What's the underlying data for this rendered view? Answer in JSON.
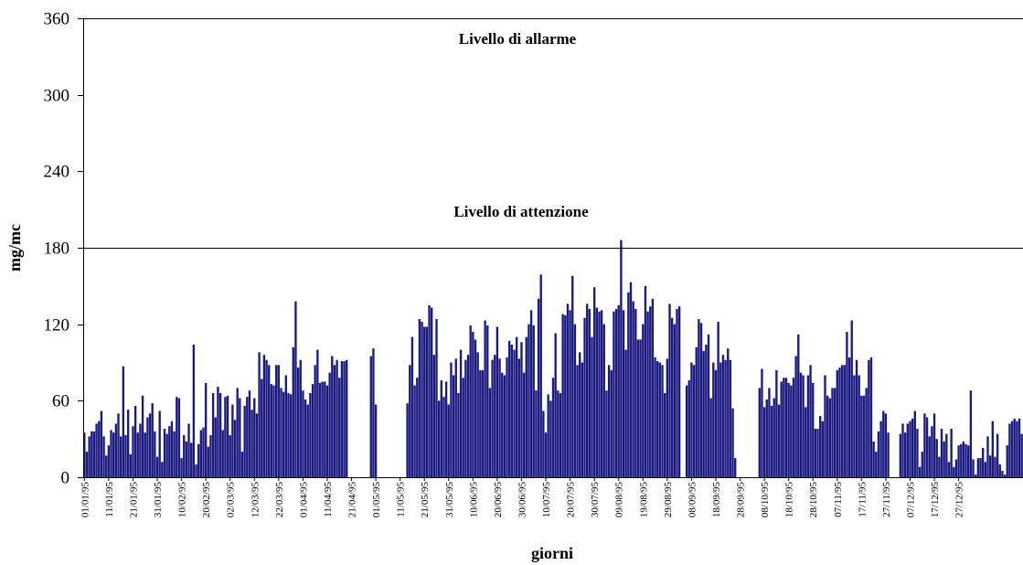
{
  "chart_data": {
    "type": "bar",
    "xlabel": "giorni",
    "ylabel": "mg/mc",
    "ylim": [
      0,
      360
    ],
    "yticks": [
      0,
      60,
      120,
      180,
      240,
      300,
      360
    ],
    "grid": false,
    "legend": "none",
    "bar_color": "#1a1a80",
    "reference_lines": [
      {
        "name": "Livello di attenzione",
        "value": 180
      },
      {
        "name": "Livello di allarme",
        "value": 360
      }
    ],
    "x_tick_labels": [
      "01/01/95",
      "11/01/95",
      "21/01/95",
      "31/01/95",
      "10/02/95",
      "20/02/95",
      "02/03/95",
      "12/03/95",
      "22/03/95",
      "01/04/95",
      "11/04/95",
      "21/04/95",
      "01/05/95",
      "11/05/95",
      "21/05/95",
      "31/05/95",
      "10/06/95",
      "20/06/95",
      "30/06/95",
      "10/07/95",
      "20/07/95",
      "30/07/95",
      "09/08/95",
      "19/08/95",
      "29/08/95",
      "08/09/95",
      "18/09/95",
      "28/09/95",
      "08/10/95",
      "18/10/95",
      "28/10/95",
      "07/11/95",
      "17/11/95",
      "27/11/95",
      "07/12/95",
      "17/12/95",
      "27/12/95"
    ],
    "values": [
      35,
      20,
      32,
      36,
      36,
      42,
      44,
      52,
      32,
      17,
      25,
      37,
      35,
      42,
      50,
      32,
      87,
      33,
      53,
      18,
      40,
      56,
      35,
      42,
      64,
      35,
      47,
      50,
      58,
      36,
      16,
      52,
      12,
      38,
      34,
      40,
      44,
      36,
      63,
      62,
      15,
      33,
      28,
      42,
      27,
      104,
      10,
      26,
      37,
      39,
      74,
      24,
      33,
      66,
      47,
      71,
      66,
      37,
      63,
      64,
      33,
      57,
      45,
      70,
      62,
      20,
      56,
      63,
      68,
      53,
      62,
      50,
      98,
      77,
      96,
      92,
      88,
      73,
      72,
      88,
      88,
      70,
      67,
      80,
      66,
      65,
      102,
      138,
      86,
      92,
      68,
      61,
      57,
      66,
      73,
      88,
      100,
      74,
      75,
      75,
      72,
      82,
      95,
      88,
      92,
      78,
      91,
      91,
      92,
      null,
      null,
      null,
      null,
      null,
      null,
      null,
      null,
      null,
      95,
      101,
      57,
      null,
      null,
      null,
      null,
      null,
      null,
      null,
      null,
      null,
      null,
      null,
      null,
      58,
      88,
      110,
      72,
      78,
      124,
      122,
      118,
      118,
      135,
      133,
      96,
      124,
      60,
      76,
      63,
      75,
      57,
      90,
      80,
      93,
      66,
      100,
      78,
      92,
      96,
      119,
      114,
      108,
      98,
      84,
      84,
      123,
      119,
      70,
      92,
      96,
      118,
      93,
      82,
      80,
      94,
      107,
      104,
      100,
      110,
      93,
      106,
      82,
      110,
      120,
      131,
      119,
      68,
      140,
      159,
      52,
      35,
      65,
      60,
      78,
      113,
      68,
      66,
      128,
      127,
      136,
      131,
      158,
      120,
      88,
      98,
      90,
      125,
      136,
      132,
      110,
      149,
      133,
      130,
      131,
      120,
      68,
      88,
      84,
      130,
      132,
      135,
      186,
      131,
      100,
      145,
      153,
      138,
      132,
      108,
      108,
      120,
      150,
      130,
      134,
      140,
      94,
      91,
      90,
      88,
      66,
      93,
      136,
      125,
      120,
      132,
      134,
      null,
      null,
      72,
      76,
      90,
      88,
      102,
      124,
      121,
      99,
      104,
      112,
      62,
      90,
      84,
      122,
      90,
      96,
      92,
      101,
      92,
      54,
      15,
      null,
      null,
      null,
      null,
      null,
      null,
      null,
      null,
      null,
      70,
      85,
      55,
      61,
      70,
      56,
      62,
      84,
      57,
      75,
      78,
      78,
      74,
      72,
      78,
      95,
      112,
      82,
      80,
      55,
      80,
      88,
      74,
      38,
      38,
      48,
      44,
      80,
      64,
      62,
      70,
      70,
      84,
      86,
      88,
      88,
      114,
      94,
      123,
      80,
      92,
      80,
      64,
      64,
      70,
      92,
      94,
      28,
      20,
      36,
      44,
      52,
      50,
      35,
      null,
      null,
      null,
      null,
      34,
      42,
      35,
      42,
      44,
      46,
      52,
      38,
      8,
      20,
      50,
      47,
      32,
      40,
      50,
      30,
      16,
      38,
      28,
      34,
      12,
      38,
      8,
      14,
      25,
      26,
      28,
      26,
      25,
      68,
      14,
      2,
      15,
      15,
      23,
      12,
      32,
      17,
      44,
      16,
      34,
      10,
      5,
      2,
      25,
      42,
      44,
      46,
      44,
      46,
      34
    ]
  }
}
